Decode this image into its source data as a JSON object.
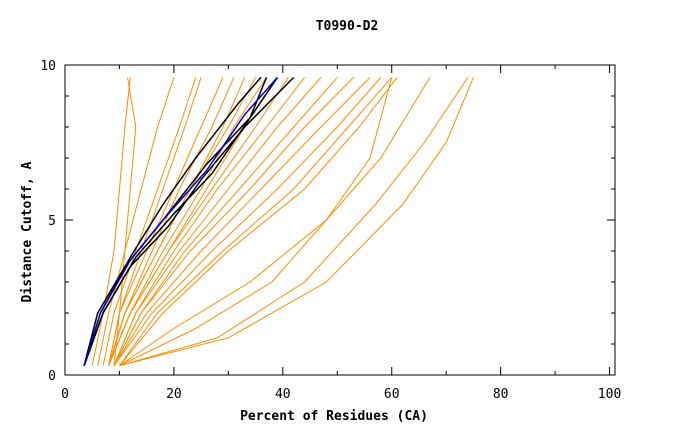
{
  "chart_data": {
    "type": "line",
    "title": "T0990-D2",
    "xlabel": "Percent of Residues (CA)",
    "ylabel": "Distance Cutoff, A",
    "xlim": [
      0,
      101
    ],
    "ylim": [
      0,
      10
    ],
    "xticks": [
      0,
      20,
      40,
      60,
      80,
      100
    ],
    "yticks": [
      0,
      5,
      10
    ],
    "xtick_labels": [
      "0",
      "20",
      "40",
      "60",
      "80",
      "100"
    ],
    "ytick_labels": [
      "0",
      "5",
      "10"
    ],
    "grid": false,
    "legend": "none",
    "colors": {
      "background_models": "#ff8c00",
      "highlight": "#000000",
      "highlight_alt": "#0000cc"
    },
    "series_style": "cumulative distance-cutoff curves, y from 0.3 to 9.6",
    "series": [
      {
        "group": "background",
        "x": [
          9,
          10,
          11,
          12,
          13,
          11.5
        ],
        "y": [
          0.3,
          2,
          4,
          6,
          8,
          9.6
        ]
      },
      {
        "group": "background",
        "x": [
          8,
          10,
          14,
          18,
          22,
          25
        ],
        "y": [
          0.3,
          2,
          4,
          6,
          8,
          9.6
        ]
      },
      {
        "group": "background",
        "x": [
          8,
          10,
          15,
          20,
          25,
          29
        ],
        "y": [
          0.3,
          2,
          4,
          6,
          8,
          9.6
        ]
      },
      {
        "group": "background",
        "x": [
          8,
          11,
          16,
          21,
          27,
          31
        ],
        "y": [
          0.3,
          2,
          4,
          6,
          8,
          9.6
        ]
      },
      {
        "group": "background",
        "x": [
          8,
          11,
          17,
          23,
          29,
          33
        ],
        "y": [
          0.3,
          2,
          4,
          6,
          8,
          9.6
        ]
      },
      {
        "group": "background",
        "x": [
          8,
          11,
          17,
          23,
          30,
          35
        ],
        "y": [
          0.3,
          2,
          4,
          6,
          8,
          9.6
        ]
      },
      {
        "group": "background",
        "x": [
          8,
          12,
          18,
          25,
          31,
          37
        ],
        "y": [
          0.3,
          2,
          4,
          6,
          8,
          9.6
        ]
      },
      {
        "group": "background",
        "x": [
          8,
          12,
          19,
          26,
          33,
          39
        ],
        "y": [
          0.3,
          2,
          4,
          6,
          8,
          9.6
        ]
      },
      {
        "group": "background",
        "x": [
          8,
          12,
          19,
          27,
          35,
          41
        ],
        "y": [
          0.3,
          2,
          4,
          6,
          8,
          9.6
        ]
      },
      {
        "group": "background",
        "x": [
          9,
          13,
          20,
          28,
          37,
          44
        ],
        "y": [
          0.3,
          2,
          4,
          6,
          8,
          9.6
        ]
      },
      {
        "group": "background",
        "x": [
          9,
          13,
          21,
          30,
          39,
          47
        ],
        "y": [
          0.3,
          2,
          4,
          6,
          8,
          9.6
        ]
      },
      {
        "group": "background",
        "x": [
          9,
          14,
          22,
          32,
          42,
          50
        ],
        "y": [
          0.3,
          2,
          4,
          6,
          8,
          9.6
        ]
      },
      {
        "group": "background",
        "x": [
          9,
          14,
          23,
          34,
          44,
          53
        ],
        "y": [
          0.3,
          2,
          4,
          6,
          8,
          9.6
        ]
      },
      {
        "group": "background",
        "x": [
          9,
          15,
          25,
          36,
          47,
          56
        ],
        "y": [
          0.3,
          2,
          4,
          6,
          8,
          9.6
        ]
      },
      {
        "group": "background",
        "x": [
          9,
          16,
          27,
          39,
          50,
          58
        ],
        "y": [
          0.3,
          2,
          4,
          6,
          8,
          9.6
        ]
      },
      {
        "group": "background",
        "x": [
          10,
          17,
          29,
          42,
          52,
          60
        ],
        "y": [
          0.3,
          2,
          4,
          6,
          8,
          9.6
        ]
      },
      {
        "group": "background",
        "x": [
          10,
          18,
          30,
          44,
          54,
          61
        ],
        "y": [
          0.3,
          2,
          4,
          6,
          8,
          9.6
        ]
      },
      {
        "group": "background",
        "x": [
          10,
          20,
          34,
          48,
          58,
          67
        ],
        "y": [
          0.3,
          1.5,
          3,
          5,
          7,
          9.6
        ]
      },
      {
        "group": "background",
        "x": [
          10,
          24,
          38,
          48,
          56,
          60
        ],
        "y": [
          0.3,
          1.5,
          3,
          5,
          7,
          9.6
        ]
      },
      {
        "group": "background",
        "x": [
          10,
          28,
          44,
          57,
          66,
          74
        ],
        "y": [
          0.3,
          1.2,
          3,
          5.5,
          7.5,
          9.6
        ]
      },
      {
        "group": "background",
        "x": [
          10,
          30,
          48,
          62,
          70,
          75
        ],
        "y": [
          0.3,
          1.2,
          3,
          5.5,
          7.5,
          9.6
        ]
      },
      {
        "group": "background",
        "x": [
          5,
          7,
          9,
          10,
          11,
          12
        ],
        "y": [
          0.3,
          2,
          4,
          6,
          8,
          9.6
        ]
      },
      {
        "group": "background",
        "x": [
          6,
          8,
          11,
          14,
          17,
          20
        ],
        "y": [
          0.3,
          2,
          4,
          6,
          8,
          9.6
        ]
      },
      {
        "group": "background",
        "x": [
          7,
          9,
          13,
          17,
          21,
          24
        ],
        "y": [
          0.3,
          2,
          4,
          6,
          8,
          9.6
        ]
      },
      {
        "group": "highlight",
        "x": [
          3.5,
          6,
          11,
          18,
          26,
          34,
          39
        ],
        "y": [
          0.3,
          2,
          3.5,
          5,
          6.8,
          8.3,
          9.6
        ]
      },
      {
        "group": "highlight",
        "x": [
          3.5,
          7,
          13,
          20,
          27,
          34,
          37
        ],
        "y": [
          0.3,
          2,
          3.8,
          5.2,
          6.5,
          8.3,
          9.6
        ]
      },
      {
        "group": "highlight",
        "x": [
          3.5,
          7,
          12,
          19,
          25,
          33,
          42
        ],
        "y": [
          0.3,
          2,
          3.5,
          4.8,
          6.3,
          8.0,
          9.6
        ]
      },
      {
        "group": "highlight",
        "x": [
          3.5,
          6.5,
          12,
          18,
          24,
          32,
          36
        ],
        "y": [
          0.3,
          2,
          3.8,
          5.5,
          7.0,
          8.8,
          9.6
        ]
      },
      {
        "group": "highlight_alt",
        "x": [
          3.5,
          6.5,
          12,
          18,
          26,
          33,
          39
        ],
        "y": [
          0.3,
          2,
          3.7,
          5,
          6.6,
          8.4,
          9.6
        ]
      }
    ]
  }
}
